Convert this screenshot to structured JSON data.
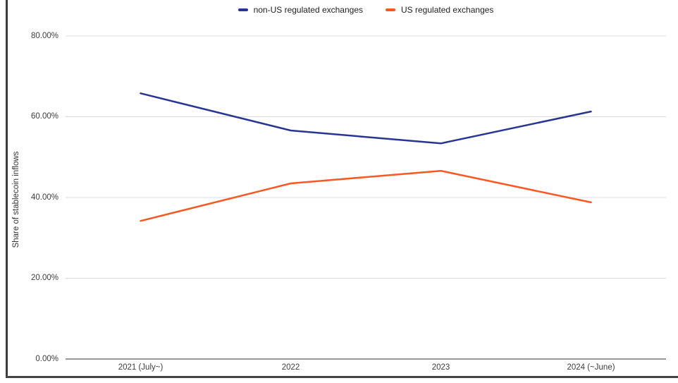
{
  "chart_data": {
    "type": "line",
    "categories": [
      "2021 (July~)",
      "2022",
      "2023",
      "2024 (~June)"
    ],
    "series": [
      {
        "name": "non-US regulated exchanges",
        "color": "#283593",
        "values": [
          65.8,
          56.6,
          53.4,
          61.3
        ]
      },
      {
        "name": "US regulated exchanges",
        "color": "#ff5722",
        "values": [
          34.2,
          43.5,
          46.6,
          38.8
        ]
      }
    ],
    "title": "",
    "xlabel": "",
    "ylabel": "Share of stablecoin inflows",
    "ylim": [
      0,
      80
    ],
    "yticks": [
      0,
      20,
      40,
      60,
      80
    ],
    "ytick_labels": [
      "0.00%",
      "20.00%",
      "40.00%",
      "60.00%",
      "80.00%"
    ],
    "grid": true,
    "legend_position": "top",
    "colors": {
      "gridline": "#dcdcdc",
      "axis_line": "#757575",
      "tick_text": "#3c3c3c"
    }
  }
}
